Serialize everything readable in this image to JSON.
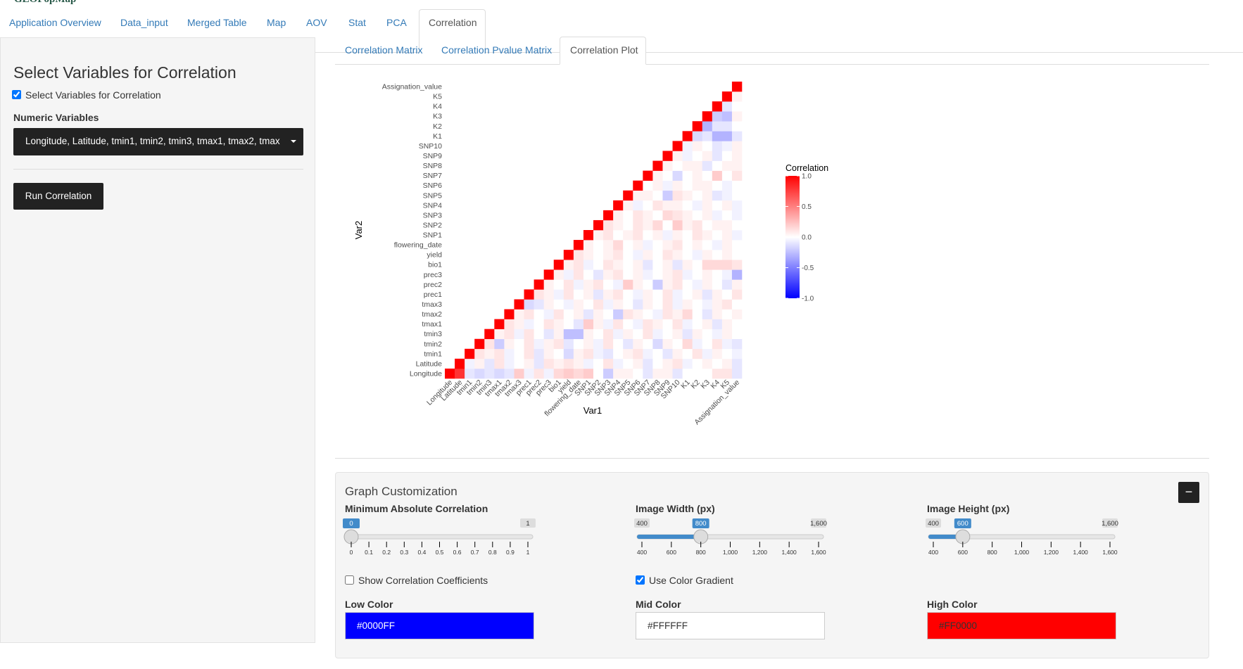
{
  "app_title": "GEOPopMap",
  "nav_tabs": [
    "Application Overview",
    "Data_input",
    "Merged Table",
    "Map",
    "AOV",
    "Stat",
    "PCA",
    "Correlation"
  ],
  "sidebar": {
    "title": "Select Variables for Correlation",
    "checkbox_label": "Select Variables for Correlation",
    "checkbox_checked": true,
    "numeric_label": "Numeric Variables",
    "numeric_value": "Longitude, Latitude, tmin1, tmin2, tmin3, tmax1, tmax2, tmax",
    "button": "Run Correlation"
  },
  "sub_tabs": [
    "Correlation Matrix",
    "Correlation Pvalue Matrix",
    "Correlation Plot"
  ],
  "chart_data": {
    "type": "heatmap",
    "xlabel": "Var1",
    "ylabel": "Var2",
    "legend_title": "Correlation",
    "variables": [
      "Longitude",
      "Latitude",
      "tmin1",
      "tmin2",
      "tmin3",
      "tmax1",
      "tmax2",
      "tmax3",
      "prec1",
      "prec2",
      "prec3",
      "bio1",
      "yield",
      "flowering_date",
      "SNP1",
      "SNP2",
      "SNP3",
      "SNP4",
      "SNP5",
      "SNP6",
      "SNP7",
      "SNP8",
      "SNP9",
      "SNP10",
      "K1",
      "K2",
      "K3",
      "K4",
      "K5",
      "Assignation_value"
    ],
    "colorbar_lim": [
      -1,
      1
    ],
    "colorbar_ticks": [
      {
        "value": 1,
        "label": "1.0"
      },
      0.5,
      {
        "value": 0,
        "label": "0.0"
      },
      -0.5,
      {
        "value": -1,
        "label": "-1.0"
      }
    ],
    "values": [
      [
        1,
        0.8,
        -0.1,
        -0.15,
        -0.1,
        -0.15,
        -0.1,
        0.2,
        -0.05,
        0.1,
        -0.05,
        0.15,
        0.2,
        0.15,
        0.2,
        0,
        -0.2,
        0.05,
        0.05,
        0,
        -0.1,
        0.05,
        0.05,
        -0.1,
        0,
        0,
        0,
        0.1,
        0.1,
        -0.1
      ],
      [
        1,
        -0.05,
        0.05,
        -0.1,
        0.1,
        -0.05,
        0,
        0.05,
        -0.1,
        0.1,
        0.05,
        0.1,
        0.05,
        -0.05,
        0,
        0.1,
        -0.05,
        0,
        0.05,
        -0.1,
        0,
        0.05,
        0.1,
        -0.05,
        0,
        0.05,
        0,
        0.05,
        -0.1
      ],
      [
        1,
        0.1,
        0.05,
        0.1,
        -0.05,
        0,
        0.1,
        -0.1,
        0.05,
        0,
        -0.15,
        0.05,
        0.1,
        -0.05,
        -0.1,
        0,
        0.05,
        0.1,
        -0.05,
        0,
        -0.1,
        0.05,
        0,
        0.1,
        -0.05,
        0.05,
        0,
        -0.05
      ],
      [
        1,
        0.1,
        -0.2,
        0.05,
        0,
        0.1,
        -0.05,
        0.05,
        0.1,
        -0.1,
        0,
        0.05,
        -0.05,
        0.1,
        0,
        -0.1,
        0.05,
        0,
        -0.15,
        0.05,
        0,
        0.15,
        -0.05,
        0,
        0.1,
        -0.05,
        -0.1
      ],
      [
        1,
        0.05,
        0.1,
        -0.05,
        0.1,
        0,
        -0.1,
        0.05,
        -0.25,
        -0.25,
        0.05,
        0,
        0.1,
        -0.05,
        0.05,
        0,
        0.1,
        -0.05,
        0,
        0.05,
        -0.1,
        0.05,
        0,
        -0.05,
        0.05,
        0
      ],
      [
        1,
        0.1,
        0.05,
        -0.05,
        0,
        0.1,
        0.05,
        0,
        -0.1,
        0.2,
        0.05,
        -0.05,
        0.1,
        0,
        -0.05,
        0.1,
        0.05,
        0,
        0.1,
        -0.05,
        0,
        0.05,
        -0.1,
        0.05,
        0
      ],
      [
        1,
        0.05,
        0.1,
        0,
        -0.05,
        0.1,
        0,
        0.05,
        -0.1,
        0.05,
        0,
        -0.2,
        0.1,
        0.05,
        0,
        -0.05,
        0.1,
        0.05,
        0.15,
        0,
        -0.1,
        0.05,
        0,
        0.05
      ],
      [
        1,
        -0.15,
        -0.1,
        0.05,
        0,
        -0.05,
        0.05,
        0,
        0.1,
        -0.05,
        0.05,
        0,
        -0.1,
        0.05,
        0,
        0.1,
        -0.05,
        0.05,
        0,
        -0.05,
        0.05,
        0.1,
        0
      ],
      [
        1,
        0.1,
        0.05,
        -0.05,
        0.1,
        0,
        0.05,
        -0.1,
        0.05,
        0.1,
        0,
        -0.05,
        0.05,
        0,
        0.1,
        -0.05,
        0,
        0.05,
        -0.1,
        0.05,
        0,
        0.1
      ],
      [
        1,
        0.05,
        0,
        0.1,
        -0.05,
        0.05,
        0.1,
        0,
        -0.05,
        0.2,
        0.05,
        0,
        -0.2,
        0.05,
        0.1,
        0,
        -0.05,
        0.05,
        0,
        -0.1,
        0.05
      ],
      [
        1,
        0.05,
        -0.05,
        0.1,
        0,
        -0.1,
        0.05,
        0.1,
        0,
        0.05,
        -0.05,
        0,
        0.05,
        0.1,
        -0.05,
        0,
        0.05,
        0,
        -0.05,
        -0.3
      ],
      [
        1,
        0.05,
        0.1,
        -0.05,
        0,
        0.1,
        0.05,
        0,
        0.05,
        -0.1,
        0,
        0.05,
        -0.1,
        0.05,
        0,
        0.15,
        0.15,
        0.15,
        0.1
      ],
      [
        1,
        0.1,
        0.05,
        0,
        0.05,
        0.1,
        0,
        -0.05,
        0.05,
        0,
        0.1,
        0.05,
        0,
        -0.05,
        0.05,
        0,
        0.05,
        0
      ],
      [
        1,
        0.05,
        0,
        0.05,
        0.15,
        0,
        0.05,
        -0.05,
        0,
        0.05,
        0.1,
        0,
        0.05,
        0,
        -0.05,
        0.05,
        0
      ],
      [
        1,
        0.05,
        0.1,
        0,
        0.05,
        0.1,
        0,
        0.05,
        -0.05,
        0.05,
        0,
        0.1,
        0.05,
        0,
        0.05,
        -0.05
      ],
      [
        1,
        0.1,
        0.05,
        0,
        0.1,
        0.05,
        0.15,
        0,
        0.2,
        0.05,
        0.1,
        0,
        0.05,
        0.05,
        0
      ],
      [
        1,
        0.05,
        0,
        0.1,
        0.05,
        0,
        0.15,
        0.1,
        0.05,
        0,
        0.05,
        -0.05,
        0,
        -0.05
      ],
      [
        1,
        0.05,
        -0.05,
        0,
        0.1,
        0.05,
        0.05,
        0,
        -0.05,
        0.05,
        0,
        0.05,
        -0.05
      ],
      [
        1,
        0.05,
        0.05,
        0,
        -0.2,
        0.1,
        0.05,
        0,
        0.05,
        -0.1,
        -0.05,
        0
      ],
      [
        1,
        0,
        0.05,
        -0.05,
        0.05,
        0,
        0.05,
        0.05,
        0,
        -0.05,
        0
      ],
      [
        1,
        0.05,
        0,
        -0.15,
        0,
        0.05,
        0,
        0.2,
        0,
        0.1
      ],
      [
        1,
        0.05,
        0,
        0.05,
        0.05,
        -0.1,
        0,
        0.05,
        0.05
      ],
      [
        1,
        0.05,
        -0.05,
        0,
        0.05,
        -0.1,
        0,
        0.05
      ],
      [
        1,
        -0.05,
        0.05,
        0,
        -0.1,
        -0.05,
        0.05
      ],
      [
        1,
        -0.15,
        -0.1,
        -0.3,
        -0.3,
        -0.1
      ],
      [
        1,
        -0.3,
        -0.1,
        -0.1,
        0
      ],
      [
        1,
        -0.2,
        -0.25,
        0.05
      ],
      [
        1,
        -0.1,
        0
      ],
      [
        1,
        0.05
      ],
      [
        1
      ]
    ]
  },
  "customization": {
    "title": "Graph Customization",
    "sliders": [
      {
        "label": "Minimum Absolute Correlation",
        "min": 0,
        "max": 1,
        "value": 0,
        "ticks": [
          0,
          0.1,
          0.2,
          0.3,
          0.4,
          0.5,
          0.6,
          0.7,
          0.8,
          0.9,
          1
        ]
      },
      {
        "label": "Image Width (px)",
        "min": 400,
        "max": {
          "value": 1600,
          "label": "1,600"
        },
        "value": 800,
        "ticks": [
          400,
          600,
          800,
          {
            "value": 1000,
            "label": "1,000"
          },
          {
            "value": 1200,
            "label": "1,200"
          },
          {
            "value": 1400,
            "label": "1,400"
          },
          {
            "value": 1600,
            "label": "1,600"
          }
        ]
      },
      {
        "label": "Image Height (px)",
        "min": 400,
        "max": {
          "value": 1600,
          "label": "1,600"
        },
        "value": 600,
        "ticks": [
          400,
          600,
          800,
          {
            "value": 1000,
            "label": "1,000"
          },
          {
            "value": 1200,
            "label": "1,200"
          },
          {
            "value": 1400,
            "label": "1,400"
          },
          {
            "value": 1600,
            "label": "1,600"
          }
        ]
      }
    ],
    "checkboxes": [
      {
        "label": "Show Correlation Coefficients",
        "checked": false
      },
      {
        "label": "Use Color Gradient",
        "checked": true
      }
    ],
    "colors": [
      {
        "label": "Low Color",
        "value": "#0000FF"
      },
      {
        "label": "Mid Color",
        "value": "#FFFFFF"
      },
      {
        "label": "High Color",
        "value": "#FF0000"
      }
    ]
  }
}
